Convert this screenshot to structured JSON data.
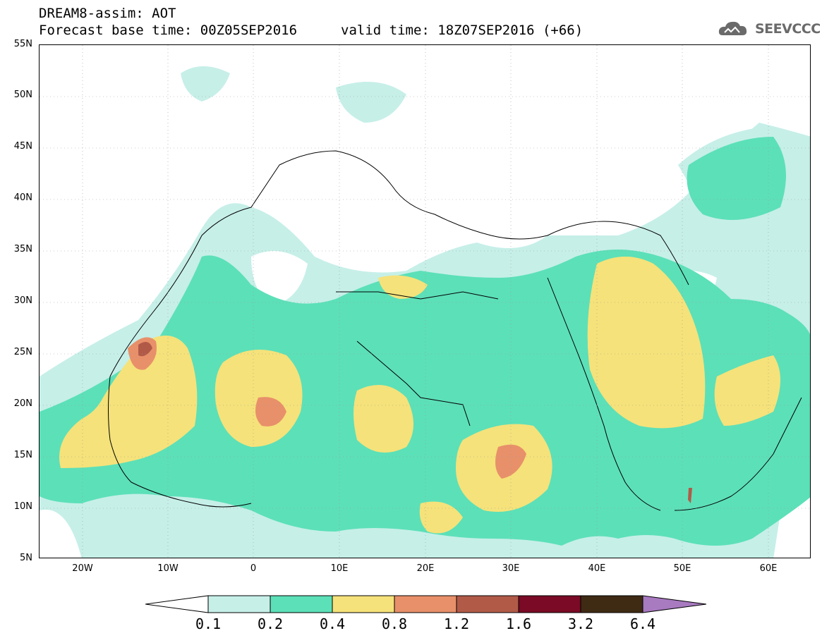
{
  "header": {
    "title_line1": "DREAM8-assim: AOT",
    "title_line2": "Forecast base time: 00Z05SEP2016",
    "valid_time": "valid time: 18Z07SEP2016 (+66)",
    "logo_text": "SEEVCCC"
  },
  "map": {
    "lat_labels": [
      "55N",
      "50N",
      "45N",
      "40N",
      "35N",
      "30N",
      "25N",
      "20N",
      "15N",
      "10N",
      "5N"
    ],
    "lon_labels": [
      "20W",
      "10W",
      "0",
      "10E",
      "20E",
      "30E",
      "40E",
      "50E",
      "60E"
    ]
  },
  "colorbar": {
    "labels": [
      "0.1",
      "0.2",
      "0.4",
      "0.8",
      "1.2",
      "1.6",
      "3.2",
      "6.4"
    ],
    "colors": [
      "#ffffff",
      "#c6efe8",
      "#5ce0b8",
      "#f5e27a",
      "#e8906a",
      "#b25a48",
      "#7a0a25",
      "#3f2a14",
      "#a87ac0"
    ]
  }
}
